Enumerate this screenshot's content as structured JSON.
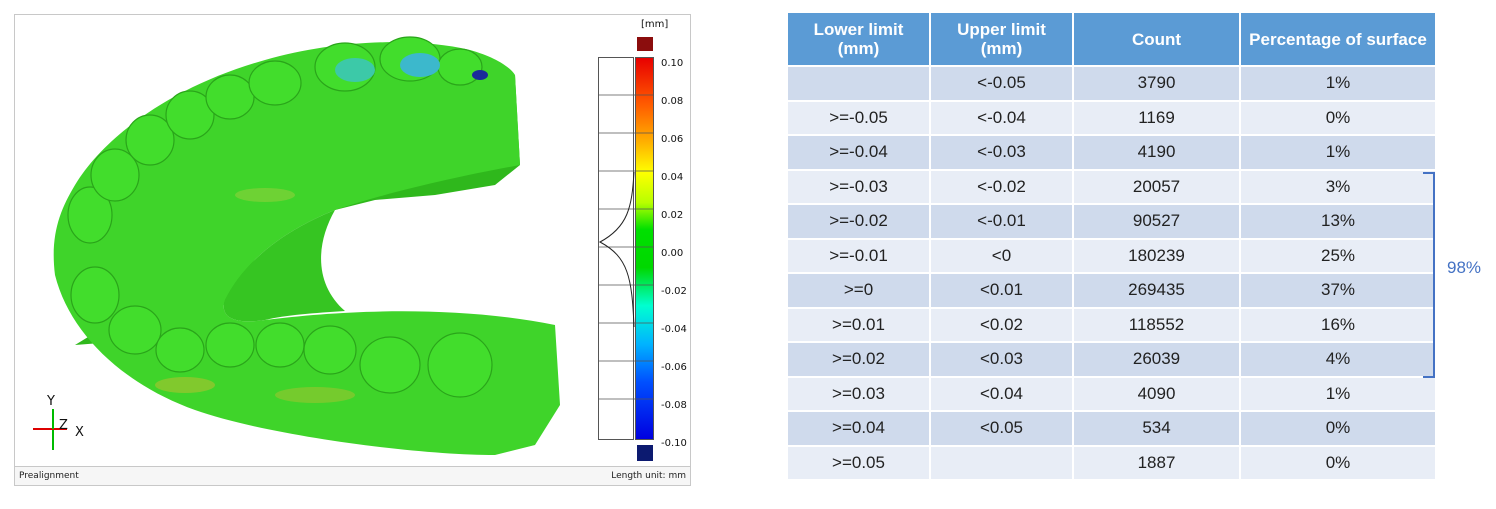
{
  "viewer": {
    "status_left": "Prealignment",
    "status_right": "Length unit: mm",
    "scale_unit": "[mm]",
    "scale_ticks": [
      "0.10",
      "0.08",
      "0.06",
      "0.04",
      "0.02",
      "0.00",
      "-0.02",
      "-0.04",
      "-0.06",
      "-0.08",
      "-0.10"
    ],
    "axes": {
      "y": "Y",
      "z": "Z",
      "x": "X"
    },
    "colors": {
      "over": "#8b0d0d",
      "under": "#0c1a70",
      "model": "#33cc22"
    }
  },
  "table": {
    "headers": [
      "Lower limit (mm)",
      "Upper limit (mm)",
      "Count",
      "Percentage of surface"
    ],
    "rows": [
      [
        "",
        "<-0.05",
        "3790",
        "1%"
      ],
      [
        ">=-0.05",
        "<-0.04",
        "1169",
        "0%"
      ],
      [
        ">=-0.04",
        "<-0.03",
        "4190",
        "1%"
      ],
      [
        ">=-0.03",
        "<-0.02",
        "20057",
        "3%"
      ],
      [
        ">=-0.02",
        "<-0.01",
        "90527",
        "13%"
      ],
      [
        ">=-0.01",
        "<0",
        "180239",
        "25%"
      ],
      [
        ">=0",
        "<0.01",
        "269435",
        "37%"
      ],
      [
        ">=0.01",
        "<0.02",
        "118552",
        "16%"
      ],
      [
        ">=0.02",
        "<0.03",
        "26039",
        "4%"
      ],
      [
        ">=0.03",
        "<0.04",
        "4090",
        "1%"
      ],
      [
        ">=0.04",
        "<0.05",
        "534",
        "0%"
      ],
      [
        ">=0.05",
        "",
        "1887",
        "0%"
      ]
    ],
    "bracket_label": "98%",
    "header_color": "#5b9bd5",
    "bracket_color": "#4472c4"
  }
}
